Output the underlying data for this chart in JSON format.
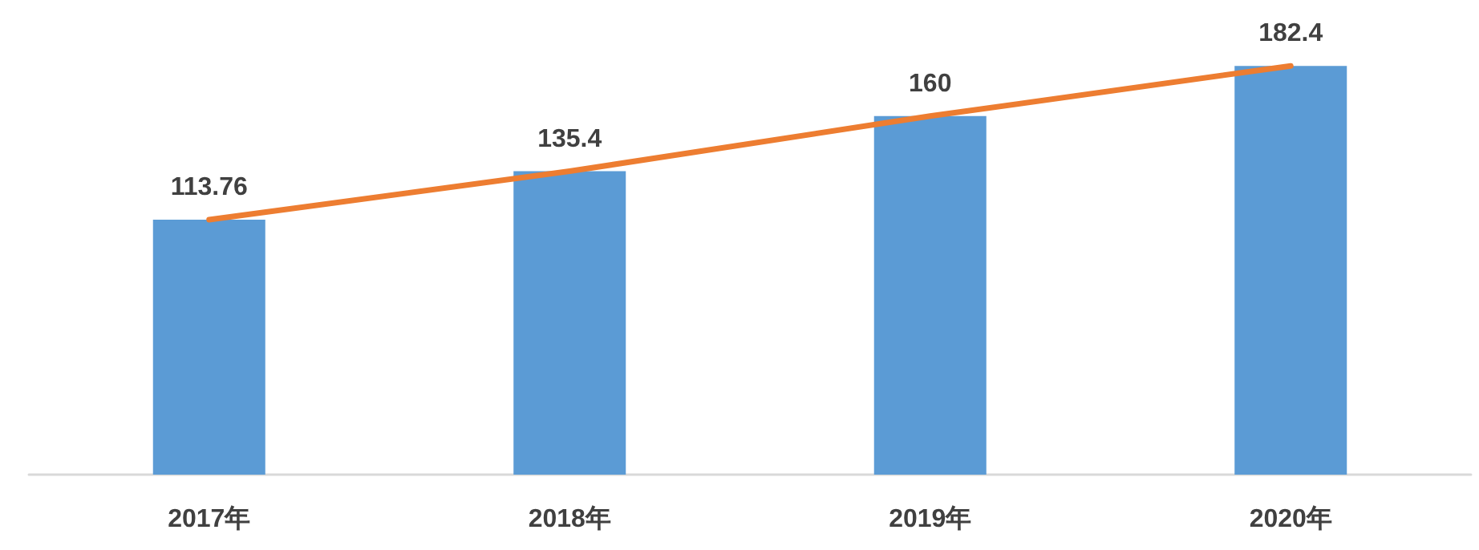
{
  "chart_data": {
    "type": "bar",
    "categories": [
      "2017年",
      "2018年",
      "2019年",
      "2020年"
    ],
    "series": [
      {
        "color": "#5b9bd5",
        "values": [
          113.76,
          135.4,
          160,
          182.4
        ],
        "value_labels": [
          "113.76",
          "135.4",
          "160",
          "182.4"
        ]
      },
      {
        "type": "line",
        "color": "#ed7d31",
        "values": [
          113.76,
          135.4,
          160,
          182.4
        ],
        "marker": "none",
        "line_style": "solid"
      }
    ],
    "grid": false,
    "tick_labels": "x"
  }
}
